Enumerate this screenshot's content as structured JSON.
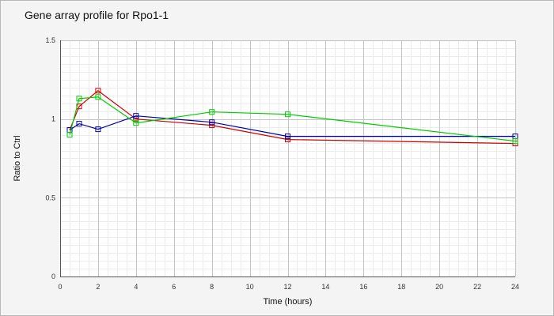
{
  "chart_data": {
    "type": "line",
    "title": "Gene array profile for Rpo1-1",
    "xlabel": "Time (hours)",
    "ylabel": "Ratio to Ctrl",
    "xlim": [
      0,
      24
    ],
    "ylim": [
      0,
      1.5
    ],
    "x_ticks": [
      0,
      2,
      4,
      6,
      8,
      10,
      12,
      14,
      16,
      18,
      20,
      22,
      24
    ],
    "y_ticks": [
      0,
      0.5,
      1,
      1.5
    ],
    "y_tick_labels": [
      "0",
      "0.5",
      "1",
      "1.5"
    ],
    "grid": true,
    "marker": "square",
    "x": [
      0.5,
      1,
      2,
      4,
      8,
      12,
      24
    ],
    "series": [
      {
        "color": "#cc0000",
        "values": [
          0.93,
          1.08,
          1.18,
          1.0,
          0.96,
          0.87,
          0.845
        ]
      },
      {
        "color": "#0000aa",
        "values": [
          0.93,
          0.97,
          0.935,
          1.02,
          0.98,
          0.89,
          0.89
        ]
      },
      {
        "color": "#00cc00",
        "values": [
          0.9,
          1.13,
          1.14,
          0.975,
          1.045,
          1.03,
          0.86
        ]
      }
    ]
  }
}
